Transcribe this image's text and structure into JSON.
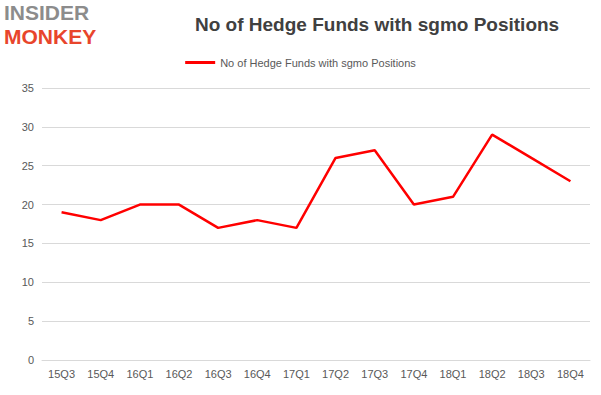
{
  "chart_data": {
    "type": "line",
    "title": "No of Hedge Funds with sgmo Positions",
    "annotations": [
      "INSIDER",
      "MONKEY"
    ],
    "categories": [
      "15Q3",
      "15Q4",
      "16Q1",
      "16Q2",
      "16Q3",
      "16Q4",
      "17Q1",
      "17Q2",
      "17Q3",
      "17Q4",
      "18Q1",
      "18Q2",
      "18Q3",
      "18Q4"
    ],
    "series": [
      {
        "name": "No of Hedge Funds with sgmo Positions",
        "color": "#ff0000",
        "values": [
          19,
          18,
          20,
          20,
          17,
          18,
          17,
          26,
          27,
          20,
          21,
          29,
          26,
          23
        ]
      }
    ],
    "ylim": [
      0,
      35
    ],
    "yticks": [
      0,
      5,
      10,
      15,
      20,
      25,
      30,
      35
    ],
    "grid": true,
    "legend": "top"
  }
}
